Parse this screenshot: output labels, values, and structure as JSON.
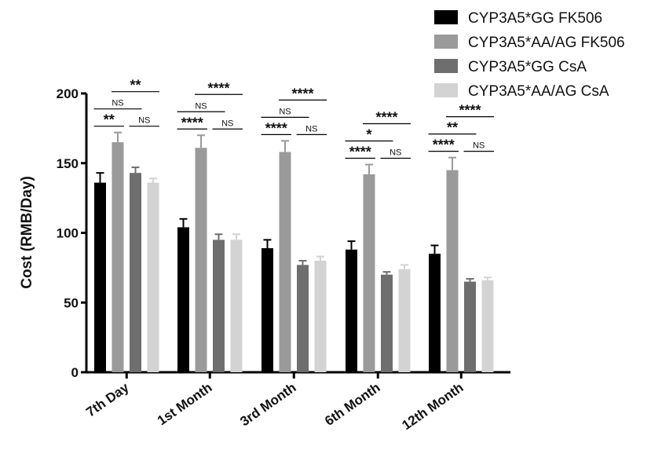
{
  "chart_data": {
    "type": "bar",
    "title": "",
    "xlabel": "",
    "ylabel": "Cost (RMB/Day)",
    "ylim": [
      0,
      200
    ],
    "yticks": [
      0,
      50,
      100,
      150,
      200
    ],
    "categories": [
      "7th Day",
      "1st Month",
      "3rd Month",
      "6th Month",
      "12th Month"
    ],
    "series": [
      {
        "name": "CYP3A5*GG FK506",
        "color": "#000000",
        "values": [
          136,
          104,
          89,
          88,
          85
        ],
        "errors": [
          7,
          6,
          6,
          6,
          6
        ]
      },
      {
        "name": "CYP3A5*AA/AG FK506",
        "color": "#9a9a9a",
        "values": [
          165,
          161,
          158,
          142,
          145
        ],
        "errors": [
          7,
          9,
          8,
          7,
          9
        ]
      },
      {
        "name": "CYP3A5*GG CsA",
        "color": "#6e6e6e",
        "values": [
          143,
          95,
          77,
          70,
          65
        ],
        "errors": [
          4,
          4,
          3,
          2,
          2
        ]
      },
      {
        "name": "CYP3A5*AA/AG CsA",
        "color": "#d3d3d3",
        "values": [
          136,
          95,
          80,
          74,
          66
        ],
        "errors": [
          3,
          4,
          3,
          3,
          2
        ]
      }
    ],
    "legend_position": "top-right",
    "grid": false,
    "significance": [
      {
        "group": 0,
        "from": 0,
        "to": 1,
        "label": "**",
        "level": 0
      },
      {
        "group": 0,
        "from": 0,
        "to": 2,
        "label": "NS",
        "level": 1
      },
      {
        "group": 0,
        "from": 1,
        "to": 3,
        "label": "**",
        "level": 2
      },
      {
        "group": 0,
        "from": 2,
        "to": 3,
        "label": "NS",
        "level": 0
      },
      {
        "group": 1,
        "from": 0,
        "to": 1,
        "label": "****",
        "level": 0
      },
      {
        "group": 1,
        "from": 0,
        "to": 2,
        "label": "NS",
        "level": 1
      },
      {
        "group": 1,
        "from": 1,
        "to": 3,
        "label": "****",
        "level": 2
      },
      {
        "group": 1,
        "from": 2,
        "to": 3,
        "label": "NS",
        "level": 0
      },
      {
        "group": 2,
        "from": 0,
        "to": 1,
        "label": "****",
        "level": 0
      },
      {
        "group": 2,
        "from": 0,
        "to": 2,
        "label": "NS",
        "level": 1
      },
      {
        "group": 2,
        "from": 1,
        "to": 3,
        "label": "****",
        "level": 2
      },
      {
        "group": 2,
        "from": 2,
        "to": 3,
        "label": "NS",
        "level": 0
      },
      {
        "group": 3,
        "from": 0,
        "to": 1,
        "label": "****",
        "level": 0
      },
      {
        "group": 3,
        "from": 0,
        "to": 2,
        "label": "*",
        "level": 1
      },
      {
        "group": 3,
        "from": 1,
        "to": 3,
        "label": "****",
        "level": 2
      },
      {
        "group": 3,
        "from": 2,
        "to": 3,
        "label": "NS",
        "level": 0
      },
      {
        "group": 4,
        "from": 0,
        "to": 1,
        "label": "****",
        "level": 0
      },
      {
        "group": 4,
        "from": 0,
        "to": 2,
        "label": "**",
        "level": 1
      },
      {
        "group": 4,
        "from": 1,
        "to": 3,
        "label": "****",
        "level": 2
      },
      {
        "group": 4,
        "from": 2,
        "to": 3,
        "label": "NS",
        "level": 0
      }
    ]
  }
}
